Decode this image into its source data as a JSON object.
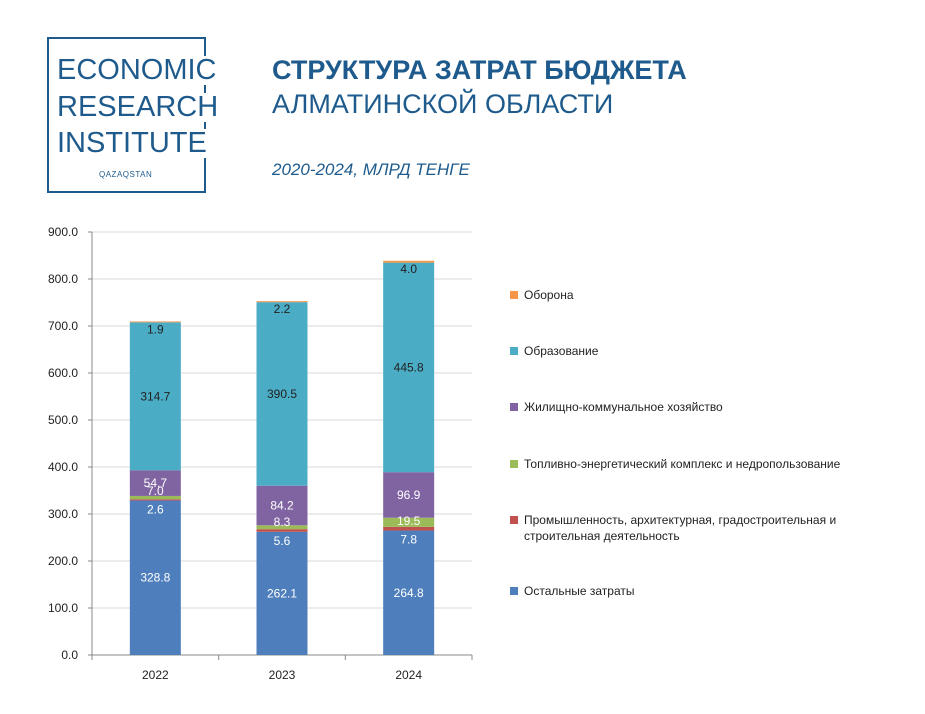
{
  "logo": {
    "line1": "ECONOMIC",
    "line2": "RESEARCH",
    "line3": "INSTITUTE",
    "sub": "QAZAQSTAN"
  },
  "header": {
    "title_line1": "СТРУКТУРА ЗАТРАТ БЮДЖЕТА",
    "title_line2": "АЛМАТИНСКОЙ ОБЛАСТИ",
    "subtitle": "2020-2024, МЛРД ТЕНГЕ"
  },
  "chart_data": {
    "type": "bar",
    "stacked": true,
    "categories": [
      "2022",
      "2023",
      "2024"
    ],
    "ylim": [
      0,
      900
    ],
    "y_ticks": [
      "0.0",
      "100.0",
      "200.0",
      "300.0",
      "400.0",
      "500.0",
      "600.0",
      "700.0",
      "800.0",
      "900.0"
    ],
    "grid": true,
    "legend_position": "right",
    "series": [
      {
        "name": "Остальные затраты",
        "color": "#4e7fbc",
        "values": [
          328.8,
          262.1,
          264.8
        ],
        "labels": [
          "328.8",
          "262.1",
          "264.8"
        ]
      },
      {
        "name": "Промышленность, архитектурная, градостроительная и строительная деятельность",
        "color": "#c0504d",
        "values": [
          2.6,
          5.6,
          7.8
        ],
        "labels": [
          "2.6",
          "5.6",
          "7.8"
        ]
      },
      {
        "name": "Топливно-энергетический комплекс и недропользование",
        "color": "#9bbb59",
        "values": [
          7.0,
          8.3,
          19.5
        ],
        "labels": [
          "7.0",
          "8.3",
          "19.5"
        ]
      },
      {
        "name": "Жилищно-коммунальное хозяйство",
        "color": "#8064a2",
        "values": [
          54.7,
          84.2,
          96.9
        ],
        "labels": [
          "54.7",
          "84.2",
          "96.9"
        ]
      },
      {
        "name": "Образование",
        "color": "#4bacc6",
        "values": [
          314.7,
          390.5,
          445.8
        ],
        "labels": [
          "314.7",
          "390.5",
          "445.8"
        ]
      },
      {
        "name": "Оборона",
        "color": "#f79646",
        "values": [
          1.9,
          2.2,
          4.0
        ],
        "labels": [
          "1.9",
          "2.2",
          "4.0"
        ]
      }
    ]
  }
}
